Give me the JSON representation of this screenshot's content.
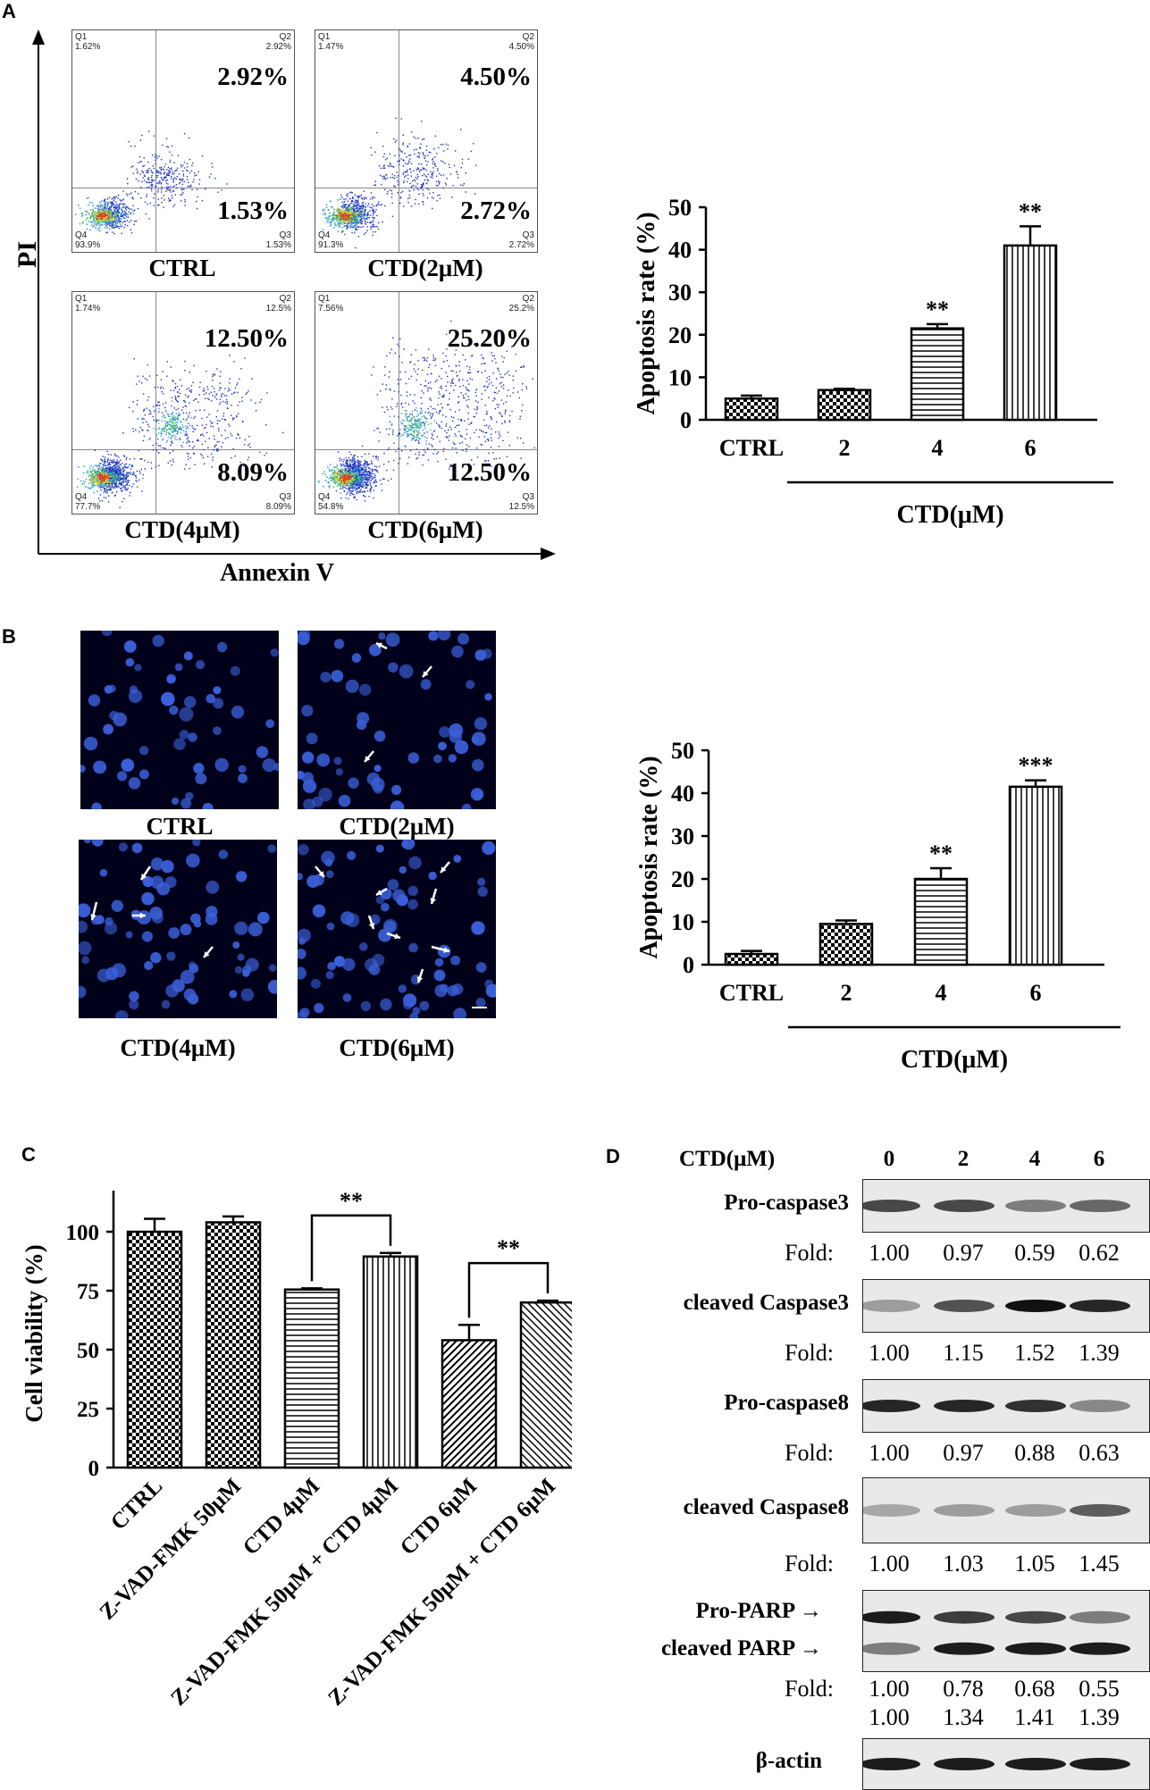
{
  "panels": {
    "a": "A",
    "b": "B",
    "c": "C",
    "d": "D"
  },
  "flow": {
    "y_axis_label": "PI",
    "x_axis_label": "Annexin V",
    "plots": [
      {
        "caption": "CTRL",
        "q1": "Q1",
        "q1_val": "1.62%",
        "q2": "Q2",
        "q2_val": "2.92%",
        "q3": "Q3",
        "q3_val": "1.53%",
        "q4": "Q4",
        "q4_val": "93.9%",
        "upper": "2.92%",
        "lower": "1.53%"
      },
      {
        "caption": "CTD(2μM)",
        "q1": "Q1",
        "q1_val": "1.47%",
        "q2": "Q2",
        "q2_val": "4.50%",
        "q3": "Q3",
        "q3_val": "2.72%",
        "q4": "Q4",
        "q4_val": "91.3%",
        "upper": "4.50%",
        "lower": "2.72%"
      },
      {
        "caption": "CTD(4μM)",
        "q1": "Q1",
        "q1_val": "1.74%",
        "q2": "Q2",
        "q2_val": "12.5%",
        "q3": "Q3",
        "q3_val": "8.09%",
        "q4": "Q4",
        "q4_val": "77.7%",
        "upper": "12.50%",
        "lower": "8.09%"
      },
      {
        "caption": "CTD(6μM)",
        "q1": "Q1",
        "q1_val": "7.56%",
        "q2": "Q2",
        "q2_val": "25.2%",
        "q3": "Q3",
        "q3_val": "12.5%",
        "q4": "Q4",
        "q4_val": "54.8%",
        "upper": "25.20%",
        "lower": "12.50%"
      }
    ]
  },
  "micro": {
    "captions": [
      "CTRL",
      "CTD(2μM)",
      "CTD(4μM)",
      "CTD(6μM)"
    ],
    "colors": {
      "background": "#00001a",
      "nuclei": "#3a5fd8",
      "arrow": "#ffffff"
    }
  },
  "chart_data": [
    {
      "id": "A-bar",
      "type": "bar",
      "categories": [
        "CTRL",
        "2",
        "4",
        "6"
      ],
      "values": [
        5,
        7,
        21.5,
        41
      ],
      "errors": [
        0.7,
        0.3,
        1.0,
        4.5
      ],
      "significance": [
        "",
        "",
        "**",
        "**"
      ],
      "patterns": [
        "checker",
        "checker",
        "hlines",
        "vlines"
      ],
      "ylabel": "Apoptosis rate (%)",
      "ylim": [
        0,
        50
      ],
      "yticks": [
        0,
        10,
        20,
        30,
        40,
        50
      ],
      "group_label": "CTD(μM)"
    },
    {
      "id": "B-bar",
      "type": "bar",
      "categories": [
        "CTRL",
        "2",
        "4",
        "6"
      ],
      "values": [
        2.5,
        9.5,
        20,
        41.5
      ],
      "errors": [
        0.7,
        0.8,
        2.5,
        1.5
      ],
      "significance": [
        "",
        "",
        "**",
        "***"
      ],
      "patterns": [
        "checker",
        "checker",
        "hlines",
        "vlines"
      ],
      "ylabel": "Apoptosis rate (%)",
      "ylim": [
        0,
        50
      ],
      "yticks": [
        0,
        10,
        20,
        30,
        40,
        50
      ],
      "group_label": "CTD(μM)"
    },
    {
      "id": "C-bar",
      "type": "bar",
      "categories": [
        "CTRL",
        "Z-VAD-FMK 50μM",
        "CTD 4μM",
        "Z-VAD-FMK 50μM + CTD 4μM",
        "CTD 6μM",
        "Z-VAD-FMK 50μM + CTD 6μM"
      ],
      "values": [
        100,
        104,
        75.5,
        89.5,
        54,
        70
      ],
      "errors": [
        5.5,
        2.5,
        0.5,
        1.5,
        6.5,
        0.8
      ],
      "patterns": [
        "checker",
        "checker",
        "hlines",
        "vlines",
        "diag",
        "diag2"
      ],
      "ylabel": "Cell viability (%)",
      "ylim": [
        0,
        125
      ],
      "yticks": [
        0,
        25,
        50,
        75,
        100
      ],
      "brackets": [
        {
          "from": 2,
          "to": 3,
          "label": "**"
        },
        {
          "from": 4,
          "to": 5,
          "label": "**"
        }
      ]
    }
  ],
  "western": {
    "header_label": "CTD(μM)",
    "doses": [
      "0",
      "2",
      "4",
      "6"
    ],
    "fold_label": "Fold:",
    "rows": [
      {
        "label": "Pro-caspase3",
        "folds": [
          "1.00",
          "0.97",
          "0.59",
          "0.62"
        ],
        "intensity": [
          0.75,
          0.75,
          0.5,
          0.6
        ]
      },
      {
        "label": "cleaved Caspase3",
        "folds": [
          "1.00",
          "1.15",
          "1.52",
          "1.39"
        ],
        "intensity": [
          0.35,
          0.7,
          1.0,
          0.9
        ]
      },
      {
        "label": "Pro-caspase8",
        "folds": [
          "1.00",
          "0.97",
          "0.88",
          "0.63"
        ],
        "intensity": [
          0.9,
          0.9,
          0.85,
          0.45
        ]
      },
      {
        "label": "cleaved Caspase8",
        "folds": [
          "1.00",
          "1.03",
          "1.05",
          "1.45"
        ],
        "intensity": [
          0.3,
          0.35,
          0.35,
          0.65
        ]
      }
    ],
    "parp": {
      "pro_label": "Pro-PARP",
      "cleaved_label": "cleaved PARP",
      "pro_folds": [
        "1.00",
        "0.78",
        "0.68",
        "0.55"
      ],
      "cleaved_folds": [
        "1.00",
        "1.34",
        "1.41",
        "1.39"
      ],
      "pro_intensity": [
        0.95,
        0.8,
        0.75,
        0.5
      ],
      "cleaved_intensity": [
        0.5,
        0.95,
        0.95,
        0.95
      ]
    },
    "actin_label": "β-actin",
    "actin_intensity": [
      0.95,
      0.95,
      0.95,
      0.95
    ]
  }
}
